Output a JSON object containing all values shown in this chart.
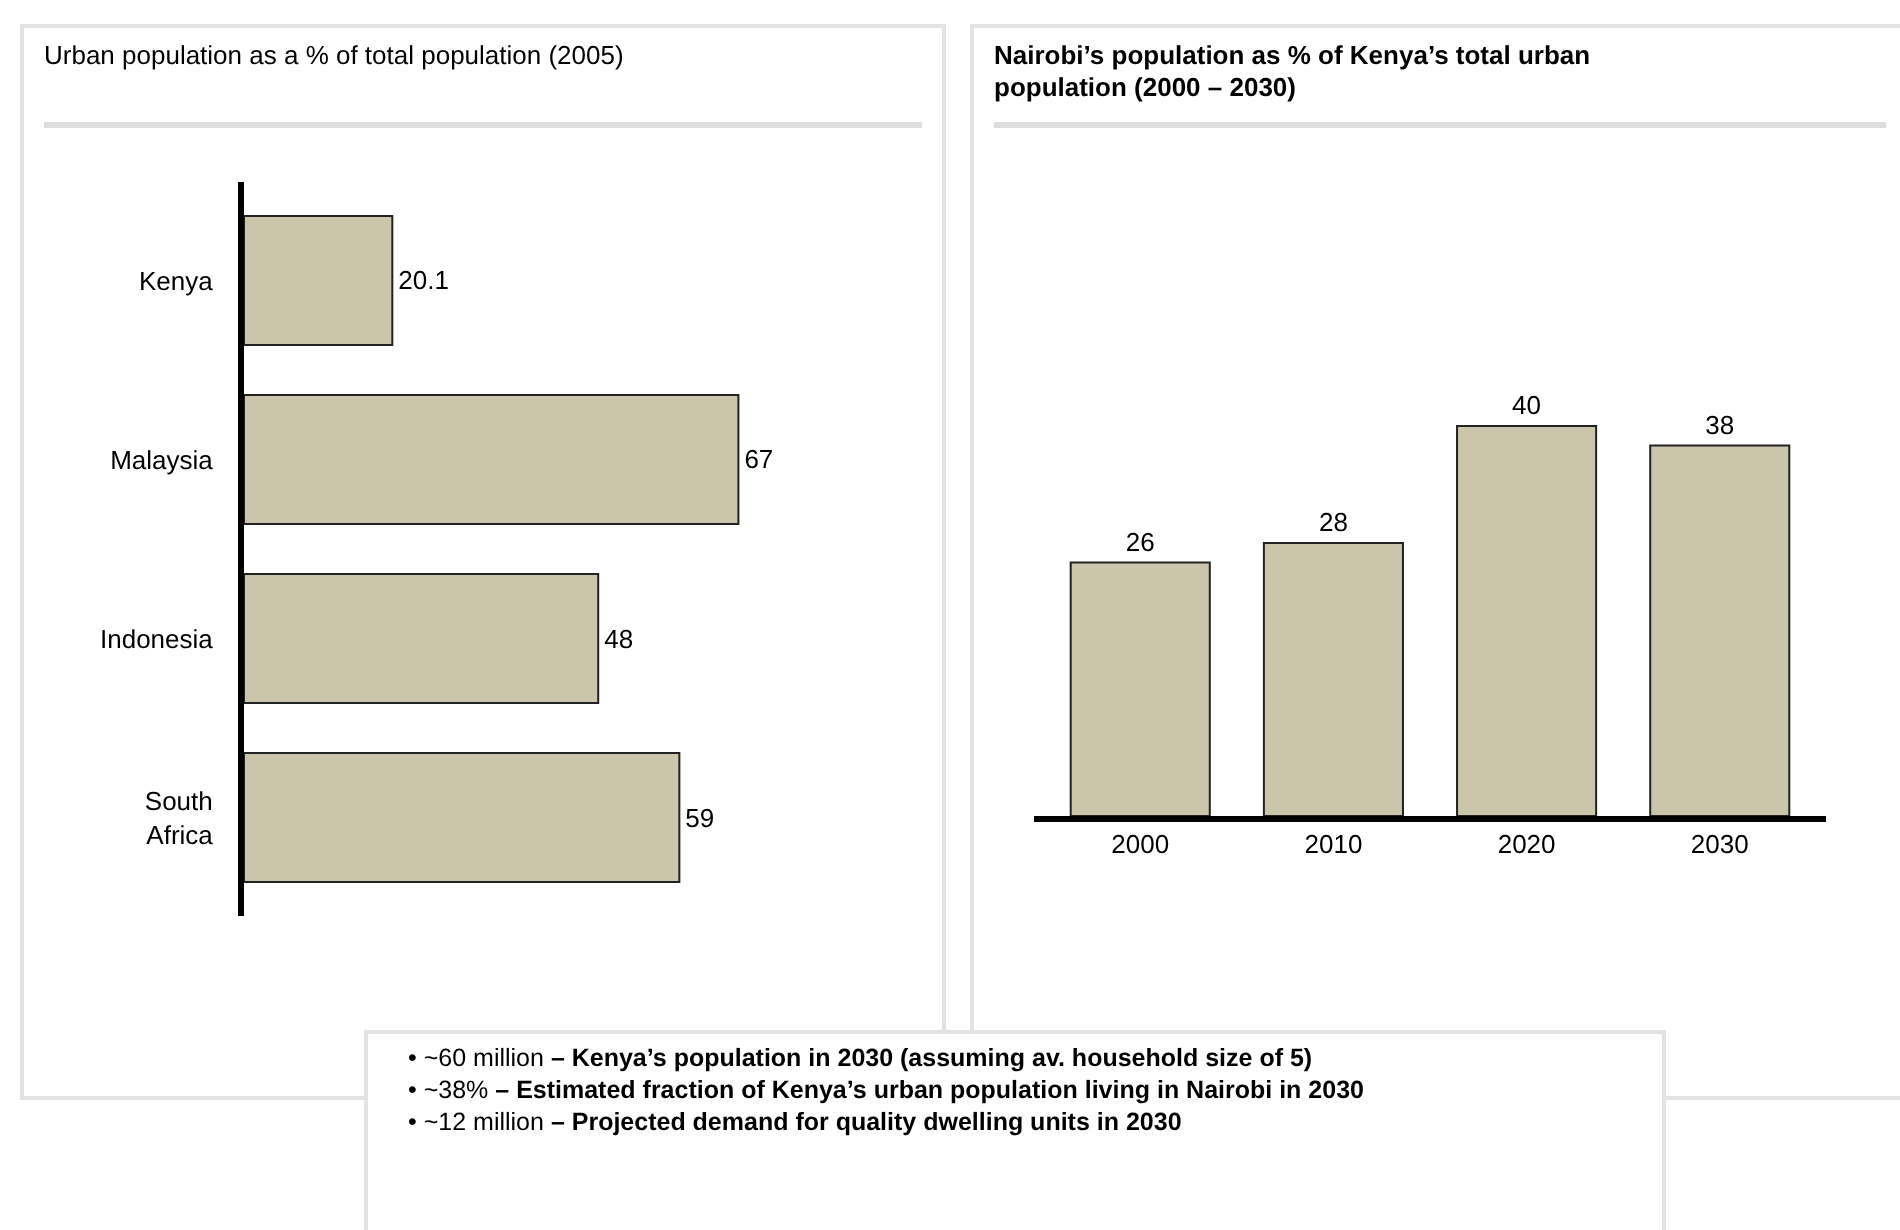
{
  "chart_data": [
    {
      "type": "bar",
      "orientation": "horizontal",
      "title": "Urban population as a % of total population (2005)",
      "categories": [
        "Kenya",
        "Malaysia",
        "Indonesia",
        "South Africa"
      ],
      "values": [
        20.1,
        67,
        48,
        59
      ],
      "color": "#cbc6ab",
      "data_labels": true,
      "tick_labels": "y"
    },
    {
      "type": "bar",
      "title": "Nairobi’s population as % of Kenya’s total urban population (2000 – 2030)",
      "categories": [
        "2000",
        "2010",
        "2020",
        "2030"
      ],
      "values": [
        26,
        28,
        40,
        38
      ],
      "color": "#cbc6ab",
      "data_labels": true,
      "tick_labels": "x"
    },
    {
      "type": "other",
      "annotations": [
        "• ~60 million – Kenya’s population in 2030 (assuming av. household size of 5)",
        "• ~38% – Estimated fraction of Kenya’s urban population living in Nairobi in 2030",
        "• ~12 million – Projected demand for quality dwelling units in 2030"
      ]
    }
  ]
}
